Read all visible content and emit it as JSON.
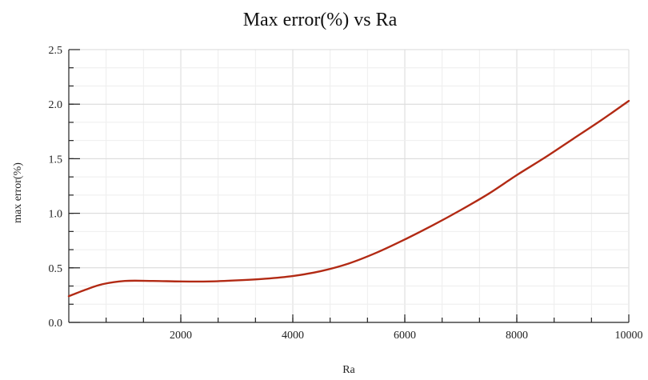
{
  "chart_data": {
    "type": "line",
    "title": "Max error(%) vs Ra",
    "xlabel": "Ra",
    "ylabel": "max error(%)",
    "xlim": [
      0,
      10000
    ],
    "ylim": [
      0,
      2.5
    ],
    "x_ticks": [
      2000,
      4000,
      6000,
      8000,
      10000
    ],
    "x_tick_labels": [
      "2000",
      "4000",
      "6000",
      "8000",
      "10000"
    ],
    "y_ticks": [
      0,
      0.5,
      1.0,
      1.5,
      2.0,
      2.5
    ],
    "y_tick_labels": [
      "0.0",
      "0.5",
      "1.0",
      "1.5",
      "2.0",
      "2.5"
    ],
    "grid": true,
    "series": [
      {
        "color": "#b22a14",
        "x": [
          0,
          300,
          600,
          1000,
          1500,
          2000,
          2500,
          3000,
          3500,
          4000,
          4500,
          5000,
          5500,
          6000,
          6500,
          7000,
          7500,
          8000,
          8500,
          9000,
          9500,
          10000
        ],
        "y": [
          0.24,
          0.3,
          0.35,
          0.38,
          0.38,
          0.375,
          0.375,
          0.385,
          0.4,
          0.425,
          0.47,
          0.54,
          0.64,
          0.76,
          0.89,
          1.03,
          1.18,
          1.35,
          1.51,
          1.68,
          1.85,
          2.03
        ]
      }
    ]
  }
}
